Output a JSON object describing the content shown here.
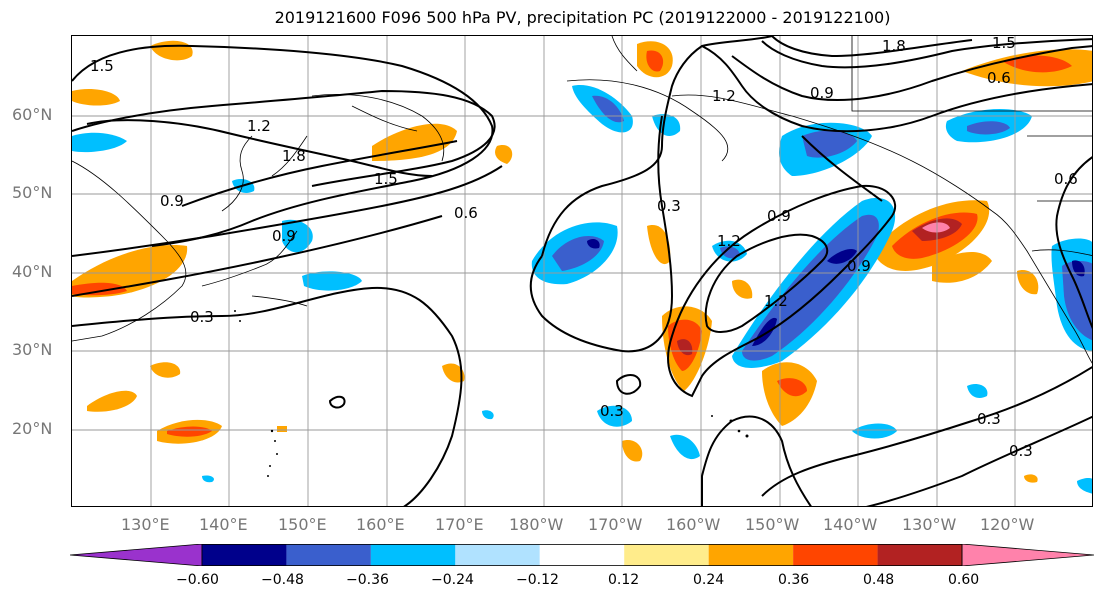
{
  "title": "2019121600 F096 500 hPa PV, precipitation PC (2019122000 - 2019122100)",
  "lat_labels": [
    "60°N",
    "50°N",
    "40°N",
    "30°N",
    "20°N"
  ],
  "lon_labels": [
    "130°E",
    "140°E",
    "150°E",
    "160°E",
    "170°E",
    "180°W",
    "170°W",
    "160°W",
    "150°W",
    "140°W",
    "130°W",
    "120°W"
  ],
  "contour_labels": [
    "1.5",
    "1.2",
    "1.8",
    "1.5",
    "0.9",
    "0.9",
    "0.6",
    "0.3",
    "0.3",
    "1.8",
    "1.5",
    "1.2",
    "0.9",
    "0.6",
    "0.6",
    "0.9",
    "1.2",
    "1.2",
    "0.9",
    "0.3",
    "0.3",
    "0.3"
  ],
  "colorbar": {
    "ticks": [
      "−0.60",
      "−0.48",
      "−0.36",
      "−0.24",
      "−0.12",
      "0.12",
      "0.24",
      "0.36",
      "0.48",
      "0.60"
    ],
    "colors": [
      "#9a32cd",
      "#00008b",
      "#3a5fcd",
      "#00bfff",
      "#b0e2ff",
      "#ffffff",
      "#ffec8b",
      "#ffa500",
      "#ff4500",
      "#b22222",
      "#ff82ab"
    ]
  }
}
